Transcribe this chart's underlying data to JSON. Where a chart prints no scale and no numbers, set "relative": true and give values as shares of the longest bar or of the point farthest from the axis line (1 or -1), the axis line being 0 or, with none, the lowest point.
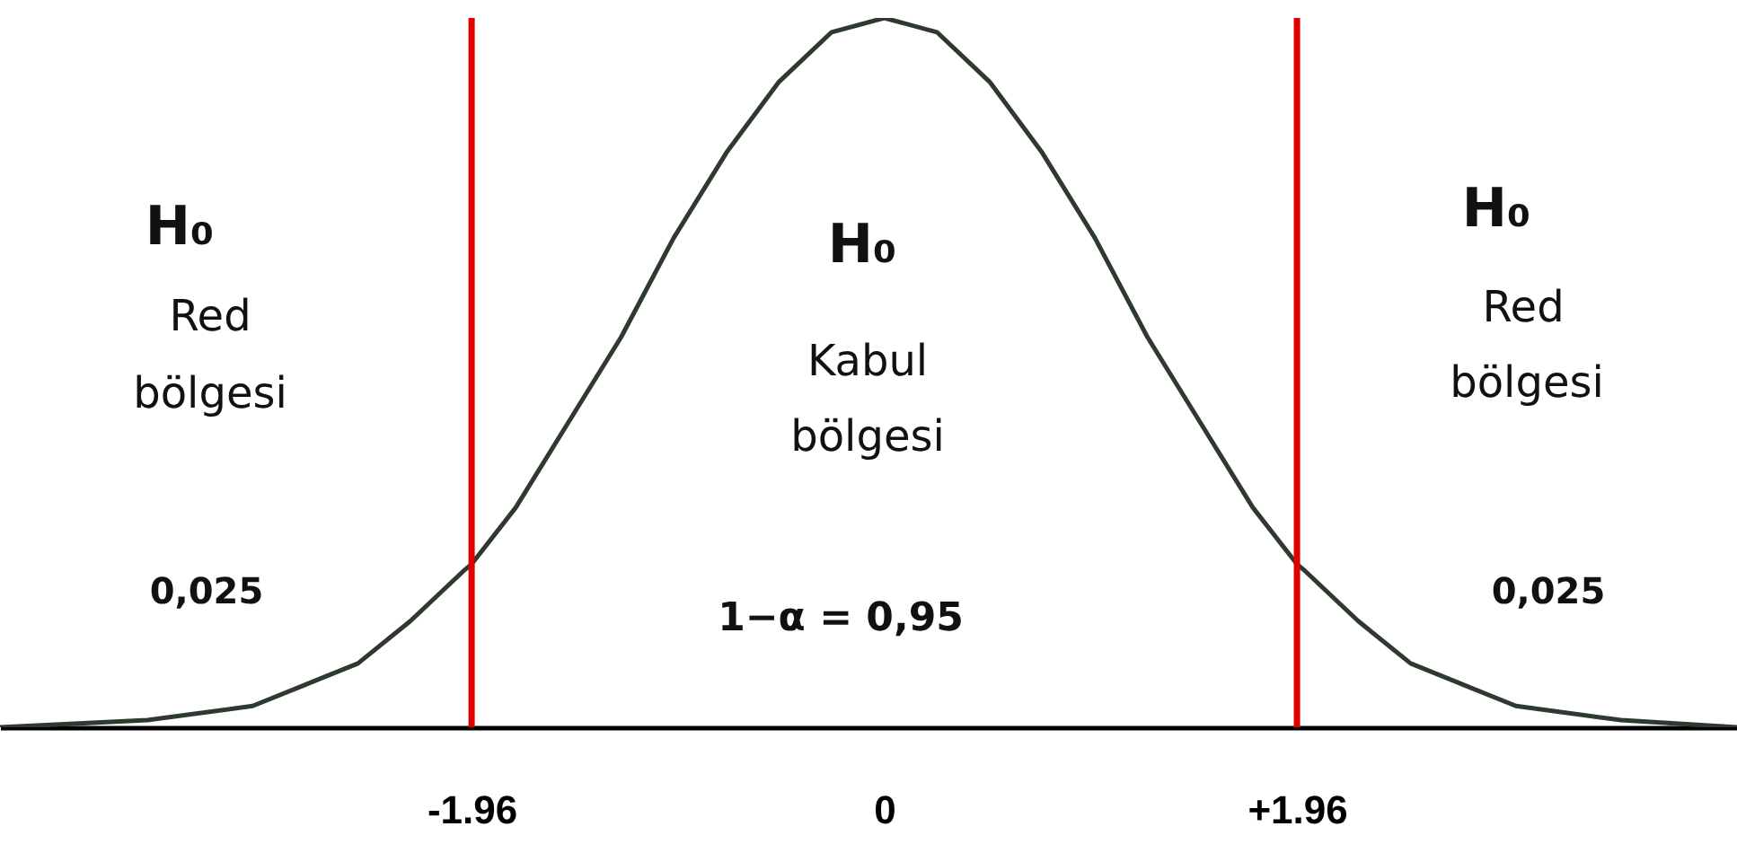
{
  "chart_data": {
    "type": "line",
    "relative": true,
    "x": [
      -4.2,
      -3.5,
      -3,
      -2.75,
      -2.5,
      -2.25,
      -2,
      -1.96,
      -1.75,
      -1.5,
      -1.25,
      -1,
      -0.75,
      -0.5,
      -0.25,
      0,
      0.25,
      0.5,
      0.75,
      1,
      1.25,
      1.5,
      1.75,
      1.96,
      2,
      2.25,
      2.5,
      2.75,
      3,
      3.5,
      4.05
    ],
    "series": [
      {
        "color": "#2f3a2f",
        "values": [
          0,
          0.01,
          0.03,
          0.06,
          0.09,
          0.15,
          0.22,
          0.23,
          0.31,
          0.43,
          0.55,
          0.69,
          0.81,
          0.91,
          0.98,
          1,
          0.98,
          0.91,
          0.81,
          0.69,
          0.55,
          0.43,
          0.31,
          0.23,
          0.22,
          0.15,
          0.09,
          0.06,
          0.03,
          0.01,
          0
        ]
      }
    ],
    "xlim": [
      -4.2,
      4.05
    ],
    "xticks": [
      -1.96,
      0,
      {
        "value": 1.96,
        "label": "+1.96"
      }
    ],
    "tick_labels": "x",
    "grid": false,
    "marker": "none",
    "line_style": "solid",
    "ref_lines": [
      {
        "axis": "x",
        "value": -1.96,
        "color": "#e00000"
      },
      {
        "axis": "x",
        "value": 1.96,
        "color": "#e00000"
      }
    ],
    "annotations": [
      "H₀",
      "Red",
      "bölgesi",
      "0,025",
      "H₀",
      "Kabul",
      "bölgesi",
      "1−α = 0,95",
      "H₀",
      "Red",
      "bölgesi",
      "0,025"
    ]
  }
}
